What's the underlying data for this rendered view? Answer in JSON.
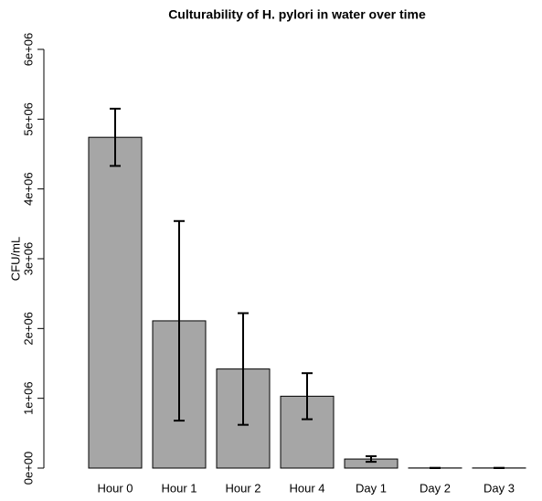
{
  "chart_data": {
    "type": "bar",
    "title": "Culturability of H. pylori in water over time",
    "ylabel": "CFU/mL",
    "categories": [
      "Hour 0",
      "Hour 1",
      "Hour 2",
      "Hour 4",
      "Day 1",
      "Day 2",
      "Day 3"
    ],
    "values": [
      4740000,
      2110000,
      1420000,
      1030000,
      130000,
      2000,
      2000
    ],
    "errors": [
      410000,
      1430000,
      800000,
      330000,
      40000,
      2000,
      2000
    ],
    "color": "#a6a6a6",
    "ylim": [
      0,
      6000000
    ],
    "yticks": [
      {
        "value": 0,
        "label": "0e+00"
      },
      {
        "value": 1000000,
        "label": "1e+06"
      },
      {
        "value": 2000000,
        "label": "2e+06"
      },
      {
        "value": 3000000,
        "label": "3e+06"
      },
      {
        "value": 4000000,
        "label": "4e+06"
      },
      {
        "value": 5000000,
        "label": "5e+06"
      },
      {
        "value": 6000000,
        "label": "6e+06"
      }
    ]
  }
}
